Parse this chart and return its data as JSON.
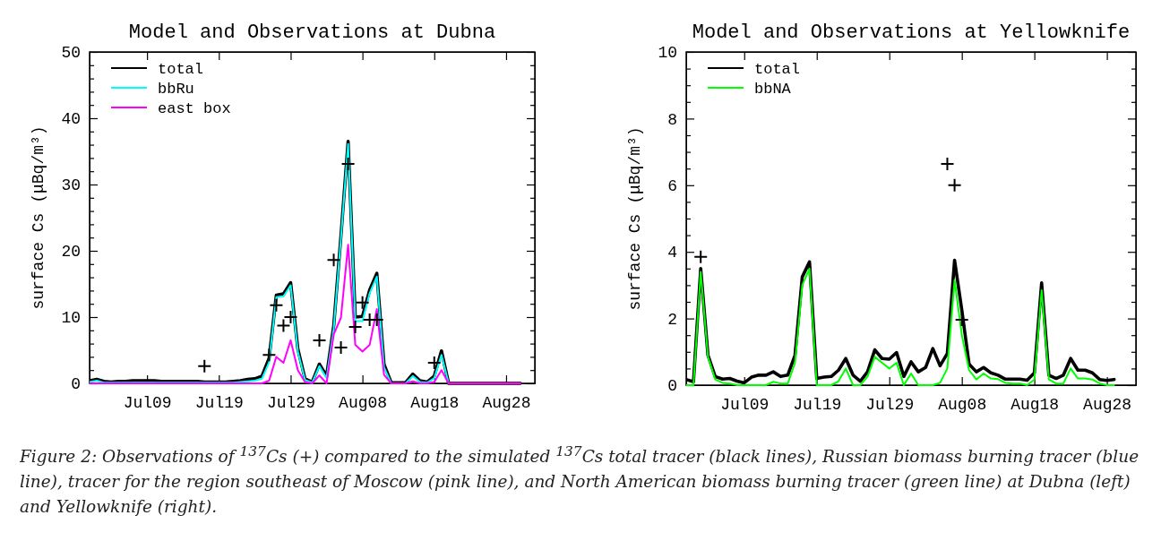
{
  "chart_data": [
    {
      "type": "line",
      "title": "Model and Observations at Dubna",
      "ylabel": "surface Cs (μBq/m³)",
      "legend": "top left",
      "line_style": "solid",
      "x": [
        "--07-01",
        "--07-02",
        "--07-03",
        "--07-04",
        "--07-05",
        "--07-06",
        "--07-07",
        "--07-08",
        "--07-09",
        "--07-10",
        "--07-11",
        "--07-12",
        "--07-13",
        "--07-14",
        "--07-15",
        "--07-16",
        "--07-17",
        "--07-18",
        "--07-19",
        "--07-20",
        "--07-21",
        "--07-22",
        "--07-23",
        "--07-24",
        "--07-25",
        "--07-26",
        "--07-27",
        "--07-28",
        "--07-29",
        "--07-30",
        "--07-31",
        "--08-01",
        "--08-02",
        "--08-03",
        "--08-04",
        "--08-05",
        "--08-06",
        "--08-07",
        "--08-08",
        "--08-09",
        "--08-10",
        "--08-11",
        "--08-12",
        "--08-13",
        "--08-14",
        "--08-15",
        "--08-16",
        "--08-17",
        "--08-18",
        "--08-19",
        "--08-20",
        "--08-21",
        "--08-22",
        "--08-23",
        "--08-24",
        "--08-25",
        "--08-26",
        "--08-27",
        "--08-28",
        "--08-29",
        "--08-30"
      ],
      "xlim": [
        "--07-01",
        "--09-01"
      ],
      "xticks": [
        {
          "value": "--07-09",
          "label": "Jul09"
        },
        {
          "value": "--07-19",
          "label": "Jul19"
        },
        {
          "value": "--07-29",
          "label": "Jul29"
        },
        {
          "value": "--08-08",
          "label": "Aug08"
        },
        {
          "value": "--08-18",
          "label": "Aug18"
        },
        {
          "value": "--08-28",
          "label": "Aug28"
        }
      ],
      "ylim": [
        0,
        50
      ],
      "yticks": [
        0,
        {
          "value": 2,
          "label": null
        },
        {
          "value": 4,
          "label": null
        },
        {
          "value": 6,
          "label": null
        },
        {
          "value": 8,
          "label": null
        },
        10,
        {
          "value": 12,
          "label": null
        },
        {
          "value": 14,
          "label": null
        },
        {
          "value": 16,
          "label": null
        },
        {
          "value": 18,
          "label": null
        },
        20,
        {
          "value": 22,
          "label": null
        },
        {
          "value": 24,
          "label": null
        },
        {
          "value": 26,
          "label": null
        },
        {
          "value": 28,
          "label": null
        },
        30,
        {
          "value": 32,
          "label": null
        },
        {
          "value": 34,
          "label": null
        },
        {
          "value": 36,
          "label": null
        },
        {
          "value": 38,
          "label": null
        },
        40,
        {
          "value": 42,
          "label": null
        },
        {
          "value": 44,
          "label": null
        },
        {
          "value": 46,
          "label": null
        },
        {
          "value": 48,
          "label": null
        },
        50
      ],
      "series": [
        {
          "name": "total",
          "color": "#000000",
          "marker": "none",
          "values": [
            0.4,
            0.6,
            0.3,
            0.2,
            0.3,
            0.3,
            0.4,
            0.4,
            0.4,
            0.4,
            0.3,
            0.3,
            0.3,
            0.3,
            0.3,
            0.3,
            0.2,
            0.2,
            0.2,
            0.2,
            0.3,
            0.4,
            0.6,
            0.7,
            1.1,
            3.8,
            13.3,
            13.5,
            15.2,
            5.2,
            0.7,
            0.2,
            2.9,
            1.1,
            8.7,
            22.2,
            36.5,
            10.0,
            10.1,
            14.1,
            16.6,
            2.9,
            0.1,
            0.1,
            0.1,
            1.4,
            0.4,
            0.2,
            1.1,
            4.9,
            0,
            0,
            0,
            0,
            0,
            0,
            0,
            0,
            0,
            0,
            0
          ]
        },
        {
          "name": "bbRu",
          "color": "#00ffff",
          "marker": "none",
          "values": [
            0.2,
            0.4,
            0.1,
            0.1,
            0.1,
            0.1,
            0.1,
            0.1,
            0.1,
            0.1,
            0.1,
            0.1,
            0.1,
            0.1,
            0.1,
            0.1,
            0.1,
            0.1,
            0.1,
            0.1,
            0.1,
            0.2,
            0.3,
            0.4,
            0.7,
            3.2,
            13.0,
            13.1,
            14.8,
            4.8,
            0.5,
            0.1,
            2.6,
            0.8,
            8.3,
            21.8,
            36.1,
            9.4,
            9.4,
            13.6,
            16.1,
            2.4,
            0,
            0,
            0,
            1.1,
            0.2,
            0.1,
            0.8,
            4.3,
            0,
            0,
            null,
            null,
            null,
            null,
            null,
            null,
            null,
            null,
            null
          ]
        },
        {
          "name": "east box",
          "color": "#ff00ff",
          "marker": "none",
          "values": [
            0,
            0,
            0,
            0,
            0,
            0,
            0,
            0,
            0,
            0,
            0,
            0,
            0,
            0,
            0,
            0,
            0,
            0,
            0,
            0,
            0,
            0,
            0,
            0,
            0,
            0.4,
            4.0,
            3.1,
            6.5,
            2.0,
            0.2,
            0,
            1.2,
            0,
            7.4,
            9.9,
            20.9,
            5.8,
            4.8,
            5.8,
            11.2,
            1.3,
            0,
            0,
            0,
            0.3,
            0,
            0,
            0.2,
            2.0,
            0,
            0,
            0,
            0,
            0,
            0,
            0,
            0,
            0,
            0,
            0
          ]
        },
        {
          "type": "scatter",
          "color": "#000000",
          "marker": "cross",
          "x": [
            "--07-17",
            "--07-26",
            "--07-27",
            "--07-28",
            "--07-29",
            "--08-02",
            "--08-04",
            "--08-05",
            "--08-06",
            "--08-07",
            "--08-08",
            "--08-09",
            "--08-10",
            "--08-18"
          ],
          "values": [
            2.6,
            4.3,
            11.8,
            8.7,
            10.0,
            6.5,
            18.6,
            5.4,
            33.1,
            8.5,
            12.2,
            9.6,
            9.6,
            3.1
          ]
        }
      ],
      "annotations": [
        "Figure 2: Observations of $^{137}$Cs (+) compared to the simulated $^{137}$Cs total tracer (black lines), Russian biomass burning tracer (blue line), tracer for the region southeast of Moscow (pink line), and North American biomass burning tracer (green line) at Dubna (left) and Yellowknife (right)."
      ]
    },
    {
      "type": "line",
      "title": "Model and Observations at Yellowknife",
      "ylabel": "surface Cs (μBq/m³)",
      "legend": "top left",
      "line_style": "solid",
      "x": [
        "--07-01",
        "--07-02",
        "--07-03",
        "--07-04",
        "--07-05",
        "--07-06",
        "--07-07",
        "--07-08",
        "--07-09",
        "--07-10",
        "--07-11",
        "--07-12",
        "--07-13",
        "--07-14",
        "--07-15",
        "--07-16",
        "--07-17",
        "--07-18",
        "--07-19",
        "--07-20",
        "--07-21",
        "--07-22",
        "--07-23",
        "--07-24",
        "--07-25",
        "--07-26",
        "--07-27",
        "--07-28",
        "--07-29",
        "--07-30",
        "--07-31",
        "--08-01",
        "--08-02",
        "--08-03",
        "--08-04",
        "--08-05",
        "--08-06",
        "--08-07",
        "--08-08",
        "--08-09",
        "--08-10",
        "--08-11",
        "--08-12",
        "--08-13",
        "--08-14",
        "--08-15",
        "--08-16",
        "--08-17",
        "--08-18",
        "--08-19",
        "--08-20",
        "--08-21",
        "--08-22",
        "--08-23",
        "--08-24",
        "--08-25",
        "--08-26",
        "--08-27",
        "--08-28",
        "--08-29"
      ],
      "xlim": [
        "--07-01",
        "--09-01"
      ],
      "xticks": [
        {
          "value": "--07-09",
          "label": "Jul09"
        },
        {
          "value": "--07-19",
          "label": "Jul19"
        },
        {
          "value": "--07-29",
          "label": "Jul29"
        },
        {
          "value": "--08-08",
          "label": "Aug08"
        },
        {
          "value": "--08-18",
          "label": "Aug18"
        },
        {
          "value": "--08-28",
          "label": "Aug28"
        }
      ],
      "ylim": [
        0,
        10
      ],
      "yticks": [
        0,
        {
          "value": 0.5,
          "label": null
        },
        {
          "value": 1,
          "label": null
        },
        {
          "value": 1.5,
          "label": null
        },
        2,
        {
          "value": 2.5,
          "label": null
        },
        {
          "value": 3,
          "label": null
        },
        {
          "value": 3.5,
          "label": null
        },
        4,
        {
          "value": 4.5,
          "label": null
        },
        {
          "value": 5,
          "label": null
        },
        {
          "value": 5.5,
          "label": null
        },
        6,
        {
          "value": 6.5,
          "label": null
        },
        {
          "value": 7,
          "label": null
        },
        {
          "value": 7.5,
          "label": null
        },
        8,
        {
          "value": 8.5,
          "label": null
        },
        {
          "value": 9,
          "label": null
        },
        {
          "value": 9.5,
          "label": null
        },
        10
      ],
      "series": [
        {
          "name": "total",
          "color": "#000000",
          "marker": "none",
          "values": [
            0.17,
            0.1,
            3.5,
            0.9,
            0.26,
            0.18,
            0.2,
            0.12,
            0.07,
            0.24,
            0.3,
            0.3,
            0.4,
            0.26,
            0.3,
            0.9,
            3.25,
            3.7,
            0.2,
            0.24,
            0.26,
            0.45,
            0.8,
            0.3,
            0.12,
            0.4,
            1.06,
            0.8,
            0.78,
            0.98,
            0.26,
            0.7,
            0.4,
            0.53,
            1.1,
            0.58,
            0.95,
            3.75,
            2.25,
            0.63,
            0.4,
            0.53,
            0.37,
            0.3,
            0.18,
            0.18,
            0.18,
            0.15,
            0.37,
            3.07,
            0.3,
            0.2,
            0.3,
            0.8,
            0.45,
            0.45,
            0.37,
            0.17,
            0.14,
            0.17
          ]
        },
        {
          "name": "bbNA",
          "color": "#00ff00",
          "marker": "none",
          "values": [
            0,
            0,
            3.4,
            0.85,
            0.17,
            0.07,
            0.05,
            0,
            0,
            0,
            0,
            0,
            0.1,
            0.05,
            0.05,
            0.67,
            3.0,
            3.5,
            0,
            0,
            0,
            0.12,
            0.5,
            0,
            0,
            0.26,
            0.85,
            0.67,
            0.5,
            0.67,
            0,
            0.35,
            0,
            0,
            0,
            0.07,
            0.5,
            3.15,
            1.5,
            0.45,
            0.17,
            0.35,
            0.2,
            0.18,
            0.07,
            0.05,
            0.05,
            0,
            0.17,
            2.85,
            0.17,
            0.05,
            0.05,
            0.5,
            0.2,
            0.2,
            0.17,
            0.05,
            0,
            0
          ]
        },
        {
          "type": "scatter",
          "color": "#000000",
          "marker": "cross",
          "x": [
            "--07-03",
            "--08-06",
            "--08-07",
            "--08-08"
          ],
          "values": [
            3.85,
            6.64,
            6.0,
            1.96
          ]
        }
      ]
    }
  ]
}
